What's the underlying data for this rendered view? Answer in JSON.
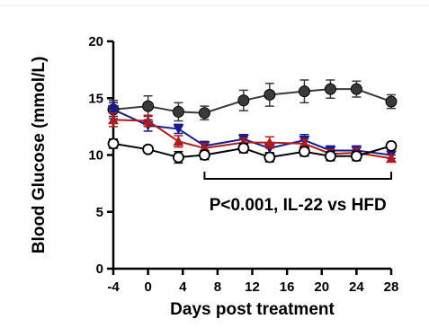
{
  "chart_data": {
    "type": "line",
    "title": "",
    "xlabel": "Days post treatment",
    "ylabel": "Blood Glucose (mmol/L)",
    "xlim": [
      -4,
      28
    ],
    "ylim": [
      0,
      20
    ],
    "x_ticks": [
      -4,
      0,
      4,
      8,
      12,
      16,
      20,
      24,
      28
    ],
    "y_ticks": [
      0,
      5,
      10,
      15,
      20
    ],
    "grid": false,
    "legend": "none",
    "series": [
      {
        "color": "#3a3a3a",
        "marker": "circle-filled",
        "x": [
          -4,
          0,
          3.5,
          6.5,
          11,
          14,
          18,
          21,
          24,
          28
        ],
        "values": [
          14.0,
          14.3,
          13.8,
          13.7,
          14.8,
          15.3,
          15.6,
          15.8,
          15.8,
          14.7
        ],
        "errors": [
          0.8,
          0.9,
          0.8,
          0.6,
          0.9,
          1.0,
          1.0,
          0.8,
          0.7,
          0.6
        ]
      },
      {
        "color": "#1a1a8c",
        "marker": "triangle-down",
        "x": [
          -4,
          0,
          3.5,
          6.5,
          11,
          14,
          18,
          21,
          24,
          28
        ],
        "values": [
          14.0,
          12.6,
          12.3,
          10.8,
          11.4,
          10.6,
          11.3,
          10.4,
          10.4,
          10.0
        ],
        "errors": [
          0.6,
          0.5,
          0.4,
          0.4,
          0.4,
          0.4,
          0.5,
          0.4,
          0.4,
          0.3
        ]
      },
      {
        "color": "#b01c1c",
        "marker": "triangle-up",
        "x": [
          -4,
          0,
          3.5,
          6.5,
          11,
          14,
          18,
          21,
          24,
          28
        ],
        "values": [
          13.1,
          13.0,
          11.2,
          10.6,
          11.1,
          11.1,
          11.0,
          10.1,
          10.2,
          9.7
        ],
        "errors": [
          0.6,
          0.5,
          0.5,
          0.4,
          0.4,
          0.5,
          0.4,
          0.4,
          0.4,
          0.3
        ]
      },
      {
        "color": "#000000",
        "marker": "circle-open",
        "x": [
          -4,
          0,
          3.5,
          6.5,
          11,
          14,
          18,
          21,
          24,
          28
        ],
        "values": [
          11.0,
          10.5,
          9.8,
          10.0,
          10.6,
          9.8,
          10.3,
          9.9,
          9.9,
          10.8
        ],
        "errors": [
          0.4,
          0.3,
          0.5,
          0.4,
          0.4,
          0.4,
          0.4,
          0.4,
          0.4,
          0.3
        ]
      }
    ],
    "annotation": {
      "text": "P<0.001, IL-22 vs HFD",
      "x_start": 6.5,
      "x_end": 28
    }
  }
}
